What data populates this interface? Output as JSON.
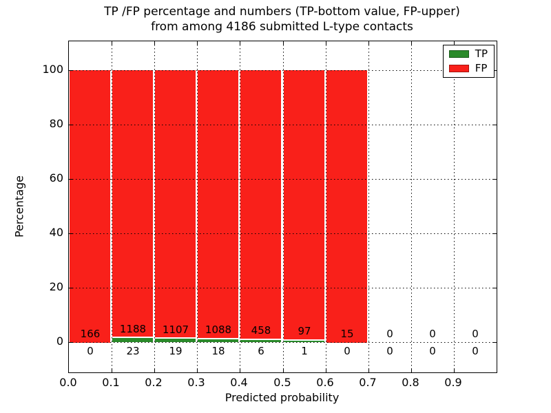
{
  "figure": {
    "title_line1": "TP /FP percentage and numbers (TP-bottom value, FP-upper)",
    "title_line2": "from among 4186 submitted L-type contacts",
    "xlabel": "Predicted probability",
    "ylabel": "Percentage"
  },
  "chart_data": {
    "type": "bar",
    "stacked": true,
    "title": "TP /FP percentage and numbers (TP-bottom value, FP-upper)\nfrom among 4186 submitted L-type contacts",
    "xlabel": "Predicted probability",
    "ylabel": "Percentage",
    "bin_edges": [
      0.0,
      0.1,
      0.2,
      0.3,
      0.4,
      0.5,
      0.6,
      0.7,
      0.8,
      0.9,
      1.0
    ],
    "series": [
      {
        "name": "TP",
        "color": "#2a8a2a",
        "counts": [
          0,
          23,
          19,
          18,
          6,
          1,
          0,
          0,
          0,
          0
        ]
      },
      {
        "name": "FP",
        "color": "#f9201a",
        "counts": [
          166,
          1188,
          1107,
          1088,
          458,
          97,
          15,
          0,
          0,
          0
        ]
      }
    ],
    "bar_values_note": "bars show stacked percentage per bin: TP/(TP+FP)*100 bottom (green), FP remainder to 100% (red); counts printed as labels (FP above baseline, TP below)",
    "x_ticks": [
      "0.0",
      "0.1",
      "0.2",
      "0.3",
      "0.4",
      "0.5",
      "0.6",
      "0.7",
      "0.8",
      "0.9"
    ],
    "y_ticks": [
      "0",
      "20",
      "40",
      "60",
      "80",
      "100"
    ],
    "xlim": [
      0.0,
      1.0
    ],
    "ylim": [
      -11.0,
      110.5
    ],
    "grid": "dotted black, drawn above bars",
    "legend": {
      "position": "upper right",
      "entries": [
        {
          "label": "TP",
          "color": "#2a8a2a"
        },
        {
          "label": "FP",
          "color": "#f9201a"
        }
      ]
    }
  }
}
